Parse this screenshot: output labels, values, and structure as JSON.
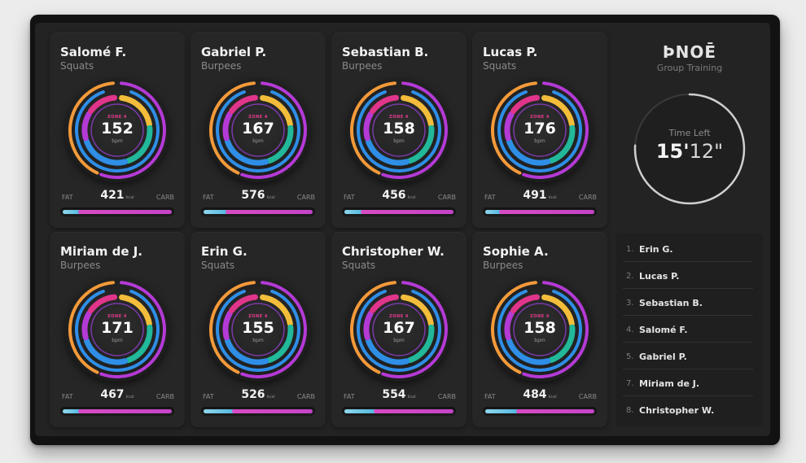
{
  "brand": {
    "logo": "ÞNOĒ",
    "subtitle": "Group Training"
  },
  "timer": {
    "label": "Time Left",
    "minutes": "15'",
    "seconds": "12\"",
    "progress": 0.76
  },
  "cards": [
    {
      "name": "Salomé F.",
      "exercise": "Squats",
      "zone": "ZONE 4",
      "bpm": "152",
      "bpm_unit": "bpm",
      "fat_label": "FAT",
      "carb_label": "CARB",
      "kcal": "421",
      "kcal_unit": "kcal",
      "fat_fraction": 0.14
    },
    {
      "name": "Gabriel P.",
      "exercise": "Burpees",
      "zone": "ZONE 4",
      "bpm": "167",
      "bpm_unit": "bpm",
      "fat_label": "FAT",
      "carb_label": "CARB",
      "kcal": "576",
      "kcal_unit": "kcal",
      "fat_fraction": 0.2
    },
    {
      "name": "Sebastian B.",
      "exercise": "Burpees",
      "zone": "ZONE 4",
      "bpm": "158",
      "bpm_unit": "bpm",
      "fat_label": "FAT",
      "carb_label": "CARB",
      "kcal": "456",
      "kcal_unit": "kcal",
      "fat_fraction": 0.15
    },
    {
      "name": "Lucas P.",
      "exercise": "Squats",
      "zone": "ZONE 4",
      "bpm": "176",
      "bpm_unit": "bpm",
      "fat_label": "FAT",
      "carb_label": "CARB",
      "kcal": "491",
      "kcal_unit": "kcal",
      "fat_fraction": 0.13
    },
    {
      "name": "Miriam de J.",
      "exercise": "Burpees",
      "zone": "ZONE 4",
      "bpm": "171",
      "bpm_unit": "bpm",
      "fat_label": "FAT",
      "carb_label": "CARB",
      "kcal": "467",
      "kcal_unit": "kcal",
      "fat_fraction": 0.14
    },
    {
      "name": "Erin G.",
      "exercise": "Squats",
      "zone": "ZONE 4",
      "bpm": "155",
      "bpm_unit": "bpm",
      "fat_label": "FAT",
      "carb_label": "CARB",
      "kcal": "526",
      "kcal_unit": "kcal",
      "fat_fraction": 0.26
    },
    {
      "name": "Christopher W.",
      "exercise": "Squats",
      "zone": "ZONE 4",
      "bpm": "167",
      "bpm_unit": "bpm",
      "fat_label": "FAT",
      "carb_label": "CARB",
      "kcal": "554",
      "kcal_unit": "kcal",
      "fat_fraction": 0.27
    },
    {
      "name": "Sophie A.",
      "exercise": "Burpees",
      "zone": "ZONE 4",
      "bpm": "158",
      "bpm_unit": "bpm",
      "fat_label": "FAT",
      "carb_label": "CARB",
      "kcal": "484",
      "kcal_unit": "kcal",
      "fat_fraction": 0.28
    }
  ],
  "leaderboard": [
    {
      "rank": "1.",
      "name": "Erin G."
    },
    {
      "rank": "2.",
      "name": "Lucas P."
    },
    {
      "rank": "3.",
      "name": "Sebastian B."
    },
    {
      "rank": "4.",
      "name": "Salomé F."
    },
    {
      "rank": "5.",
      "name": "Gabriel P."
    },
    {
      "rank": "7.",
      "name": "Miriam de J."
    },
    {
      "rank": "8.",
      "name": "Christopher W."
    }
  ],
  "colors": {
    "zone_magenta": "#e0358b",
    "zone_orange": "#f39a3a",
    "zone_yellow": "#f3bd3b",
    "zone_green": "#22b89a",
    "zone_blue": "#2f8ee6",
    "zone_purple": "#b43ad6",
    "fat_bar": "#6fc6e6",
    "carb_bar": "#d04bc6"
  }
}
